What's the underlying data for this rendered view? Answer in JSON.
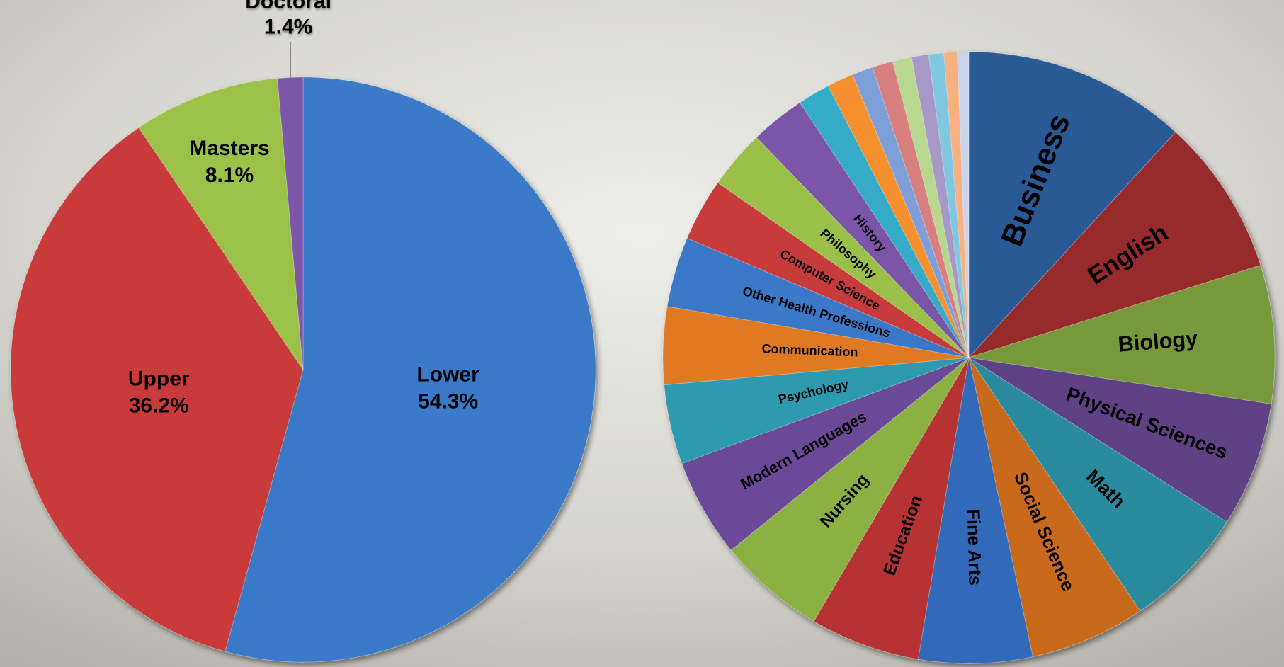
{
  "chart_data": [
    {
      "type": "pie",
      "categories": [
        "Lower",
        "Upper",
        "Masters",
        "Doctoral"
      ],
      "values": [
        54.3,
        36.2,
        8.1,
        1.4
      ],
      "value_labels": [
        "54.3%",
        "36.2%",
        "8.1%",
        "1.4%"
      ],
      "colors": [
        "#3b79c9",
        "#c93b3b",
        "#9cc14a",
        "#7b56a9"
      ]
    },
    {
      "type": "pie",
      "categories": [
        "Business",
        "English",
        "Biology",
        "Physical Sciences",
        "Math",
        "Social Science",
        "Fine Arts",
        "Education",
        "Nursing",
        "Modern Languages",
        "Psychology",
        "Communication",
        "Other Health Professions",
        "Computer Science",
        "Philosophy",
        "History",
        null,
        null,
        null,
        null,
        null,
        null,
        null,
        null,
        null
      ],
      "values": [
        11.8,
        8.3,
        7.3,
        6.6,
        6.5,
        6.1,
        6.0,
        5.8,
        5.7,
        5.2,
        4.2,
        4.1,
        3.7,
        3.3,
        3.1,
        2.9,
        1.7,
        1.4,
        1.1,
        1.1,
        1.0,
        0.9,
        0.8,
        0.7,
        0.6
      ],
      "colors": [
        "#2c5a96",
        "#972b2b",
        "#77983b",
        "#5f4386",
        "#2b8b9f",
        "#c9691f",
        "#3069b8",
        "#b73232",
        "#8cb043",
        "#6a4a98",
        "#2f9ab0",
        "#e07a24",
        "#3a78c8",
        "#c83a3a",
        "#9bc048",
        "#7a55a8",
        "#35abc8",
        "#f5902e",
        "#7f9fd8",
        "#d88080",
        "#b8d890",
        "#a898c8",
        "#80c8e0",
        "#f8b080",
        "#c8d4ec"
      ]
    }
  ]
}
